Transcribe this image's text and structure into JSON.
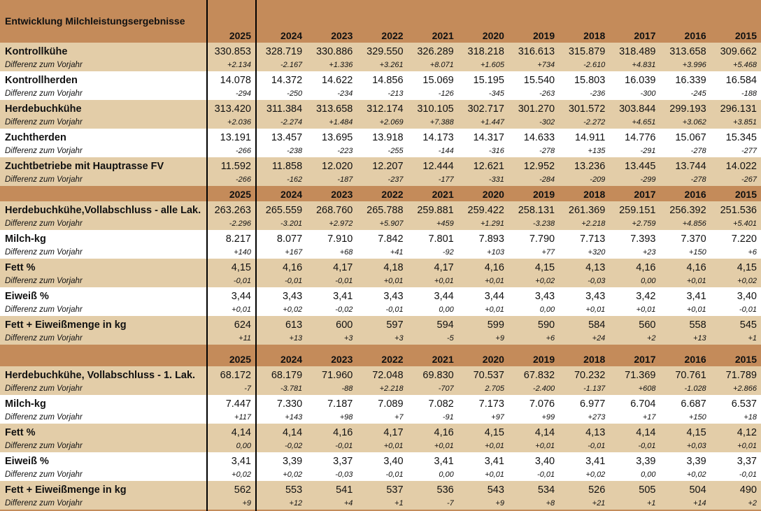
{
  "title": "Entwicklung Milchleistungsergebnisse",
  "colors": {
    "header": "#C48B5A",
    "band": "#E3CDA8",
    "plain": "#FFFFFF"
  },
  "diff_label": "Differenz zum Vorjahr",
  "sections": [
    {
      "years": [
        "2025",
        "2024",
        "2023",
        "2022",
        "2021",
        "2020",
        "2019",
        "2018",
        "2017",
        "2016",
        "2015"
      ],
      "rows": [
        {
          "label": "Kontrollkühe",
          "values": [
            "330.853",
            "328.719",
            "330.886",
            "329.550",
            "326.289",
            "318.218",
            "316.613",
            "315.879",
            "318.489",
            "313.658",
            "309.662"
          ],
          "diffs": [
            "+2.134",
            "-2.167",
            "+1.336",
            "+3.261",
            "+8.071",
            "+1.605",
            "+734",
            "-2.610",
            "+4.831",
            "+3.996",
            "+5.468"
          ]
        },
        {
          "label": "Kontrollherden",
          "values": [
            "14.078",
            "14.372",
            "14.622",
            "14.856",
            "15.069",
            "15.195",
            "15.540",
            "15.803",
            "16.039",
            "16.339",
            "16.584"
          ],
          "diffs": [
            "-294",
            "-250",
            "-234",
            "-213",
            "-126",
            "-345",
            "-263",
            "-236",
            "-300",
            "-245",
            "-188"
          ]
        },
        {
          "label": "Herdebuchkühe",
          "values": [
            "313.420",
            "311.384",
            "313.658",
            "312.174",
            "310.105",
            "302.717",
            "301.270",
            "301.572",
            "303.844",
            "299.193",
            "296.131"
          ],
          "diffs": [
            "+2.036",
            "-2.274",
            "+1.484",
            "+2.069",
            "+7.388",
            "+1.447",
            "-302",
            "-2.272",
            "+4.651",
            "+3.062",
            "+3.851"
          ]
        },
        {
          "label": "Zuchtherden",
          "values": [
            "13.191",
            "13.457",
            "13.695",
            "13.918",
            "14.173",
            "14.317",
            "14.633",
            "14.911",
            "14.776",
            "15.067",
            "15.345"
          ],
          "diffs": [
            "-266",
            "-238",
            "-223",
            "-255",
            "-144",
            "-316",
            "-278",
            "+135",
            "-291",
            "-278",
            "-277"
          ]
        },
        {
          "label": "Zuchtbetriebe mit Hauptrasse FV",
          "values": [
            "11.592",
            "11.858",
            "12.020",
            "12.207",
            "12.444",
            "12.621",
            "12.952",
            "13.236",
            "13.445",
            "13.744",
            "14.022"
          ],
          "diffs": [
            "-266",
            "-162",
            "-187",
            "-237",
            "-177",
            "-331",
            "-284",
            "-209",
            "-299",
            "-278",
            "-267"
          ]
        }
      ]
    },
    {
      "years": [
        "2025",
        "2024",
        "2023",
        "2022",
        "2021",
        "2020",
        "2019",
        "2018",
        "2017",
        "2016",
        "2015"
      ],
      "rows": [
        {
          "label": "Herdebuchkühe,Vollabschluss - alle Lak.",
          "values": [
            "263.263",
            "265.559",
            "268.760",
            "265.788",
            "259.881",
            "259.422",
            "258.131",
            "261.369",
            "259.151",
            "256.392",
            "251.536"
          ],
          "diffs": [
            "-2.296",
            "-3.201",
            "+2.972",
            "+5.907",
            "+459",
            "+1.291",
            "-3.238",
            "+2.218",
            "+2.759",
            "+4.856",
            "+5.401"
          ]
        },
        {
          "label": "Milch-kg",
          "values": [
            "8.217",
            "8.077",
            "7.910",
            "7.842",
            "7.801",
            "7.893",
            "7.790",
            "7.713",
            "7.393",
            "7.370",
            "7.220"
          ],
          "diffs": [
            "+140",
            "+167",
            "+68",
            "+41",
            "-92",
            "+103",
            "+77",
            "+320",
            "+23",
            "+150",
            "+6"
          ]
        },
        {
          "label": "Fett %",
          "values": [
            "4,15",
            "4,16",
            "4,17",
            "4,18",
            "4,17",
            "4,16",
            "4,15",
            "4,13",
            "4,16",
            "4,16",
            "4,15"
          ],
          "diffs": [
            "-0,01",
            "-0,01",
            "-0,01",
            "+0,01",
            "+0,01",
            "+0,01",
            "+0,02",
            "-0,03",
            "0,00",
            "+0,01",
            "+0,02"
          ]
        },
        {
          "label": "Eiweiß %",
          "values": [
            "3,44",
            "3,43",
            "3,41",
            "3,43",
            "3,44",
            "3,44",
            "3,43",
            "3,43",
            "3,42",
            "3,41",
            "3,40"
          ],
          "diffs": [
            "+0,01",
            "+0,02",
            "-0,02",
            "-0,01",
            "0,00",
            "+0,01",
            "0,00",
            "+0,01",
            "+0,01",
            "+0,01",
            "-0,01"
          ]
        },
        {
          "label": "Fett + Eiweißmenge in kg",
          "values": [
            "624",
            "613",
            "600",
            "597",
            "594",
            "599",
            "590",
            "584",
            "560",
            "558",
            "545"
          ],
          "diffs": [
            "+11",
            "+13",
            "+3",
            "+3",
            "-5",
            "+9",
            "+6",
            "+24",
            "+2",
            "+13",
            "+1"
          ]
        }
      ]
    },
    {
      "years": [
        "2025",
        "2024",
        "2023",
        "2022",
        "2021",
        "2020",
        "2019",
        "2018",
        "2017",
        "2016",
        "2015"
      ],
      "rows": [
        {
          "label": "Herdebuchkühe, Vollabschluss - 1. Lak.",
          "values": [
            "68.172",
            "68.179",
            "71.960",
            "72.048",
            "69.830",
            "70.537",
            "67.832",
            "70.232",
            "71.369",
            "70.761",
            "71.789"
          ],
          "diffs": [
            "-7",
            "-3.781",
            "-88",
            "+2.218",
            "-707",
            "2.705",
            "-2.400",
            "-1.137",
            "+608",
            "-1.028",
            "+2.866"
          ]
        },
        {
          "label": "Milch-kg",
          "values": [
            "7.447",
            "7.330",
            "7.187",
            "7.089",
            "7.082",
            "7.173",
            "7.076",
            "6.977",
            "6.704",
            "6.687",
            "6.537"
          ],
          "diffs": [
            "+117",
            "+143",
            "+98",
            "+7",
            "-91",
            "+97",
            "+99",
            "+273",
            "+17",
            "+150",
            "+18"
          ]
        },
        {
          "label": "Fett %",
          "values": [
            "4,14",
            "4,14",
            "4,16",
            "4,17",
            "4,16",
            "4,15",
            "4,14",
            "4,13",
            "4,14",
            "4,15",
            "4,12"
          ],
          "diffs": [
            "0,00",
            "-0,02",
            "-0,01",
            "+0,01",
            "+0,01",
            "+0,01",
            "+0,01",
            "-0,01",
            "-0,01",
            "+0,03",
            "+0,01"
          ]
        },
        {
          "label": "Eiweiß %",
          "values": [
            "3,41",
            "3,39",
            "3,37",
            "3,40",
            "3,41",
            "3,41",
            "3,40",
            "3,41",
            "3,39",
            "3,39",
            "3,37"
          ],
          "diffs": [
            "+0,02",
            "+0,02",
            "-0,03",
            "-0,01",
            "0,00",
            "+0,01",
            "-0,01",
            "+0,02",
            "0,00",
            "+0,02",
            "-0,01"
          ]
        },
        {
          "label": "Fett + Eiweißmenge in kg",
          "values": [
            "562",
            "553",
            "541",
            "537",
            "536",
            "543",
            "534",
            "526",
            "505",
            "504",
            "490"
          ],
          "diffs": [
            "+9",
            "+12",
            "+4",
            "+1",
            "-7",
            "+9",
            "+8",
            "+21",
            "+1",
            "+14",
            "+2"
          ]
        }
      ]
    }
  ]
}
